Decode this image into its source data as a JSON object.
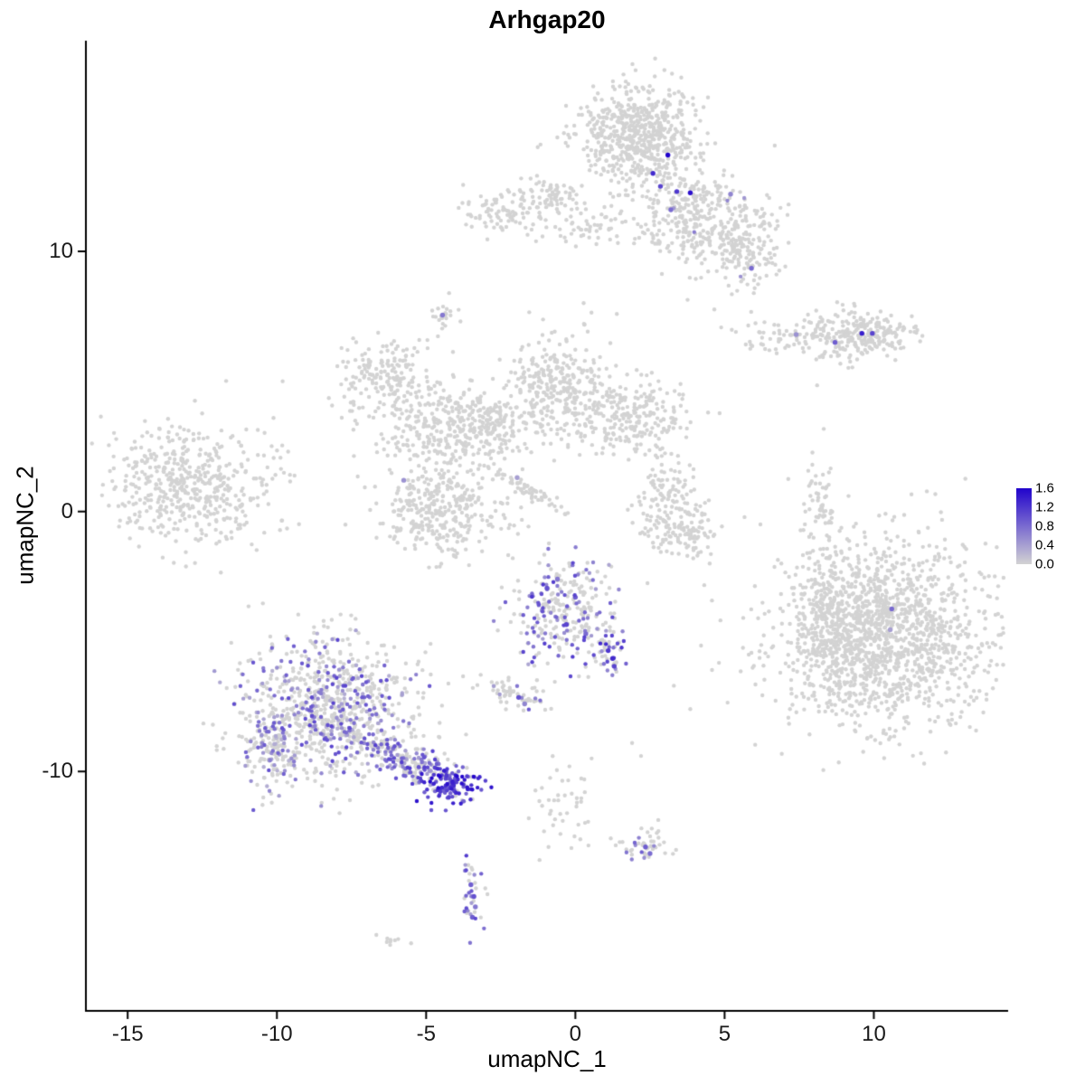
{
  "title": "Arhgap20",
  "chart_data": {
    "type": "scatter",
    "title": "Arhgap20",
    "xlabel": "umapNC_1",
    "ylabel": "umapNC_2",
    "xlim": [
      -16.4,
      14.5
    ],
    "ylim": [
      -19.2,
      18.1
    ],
    "x_ticks": [
      {
        "v": -15,
        "label": "-15"
      },
      {
        "v": -10,
        "label": "-10"
      },
      {
        "v": -5,
        "label": "-5"
      },
      {
        "v": 0,
        "label": "0"
      },
      {
        "v": 5,
        "label": "5"
      },
      {
        "v": 10,
        "label": "10"
      }
    ],
    "y_ticks": [
      {
        "v": 10,
        "label": "10"
      },
      {
        "v": 0,
        "label": "0"
      },
      {
        "v": -10,
        "label": "-10"
      }
    ],
    "grid": false,
    "legend": {
      "position": "right",
      "max": 1.6,
      "ticks": [
        "1.6",
        "1.2",
        "0.8",
        "0.4",
        "0.0"
      ]
    },
    "point_color_low": "#d3d3d3",
    "point_color_high": "#2103cc",
    "clusters": [
      {
        "name": "top-main",
        "cx": 2.1,
        "cy": 14.4,
        "sx": 1.0,
        "sy": 0.95,
        "n": 650
      },
      {
        "name": "top-arm",
        "cx": 4.4,
        "cy": 11.1,
        "sx": 1.2,
        "sy": 0.9,
        "rot": -35,
        "n": 380,
        "f": 0.01,
        "lo": 0.3,
        "hi": 0.7
      },
      {
        "name": "top-tip",
        "cx": 5.75,
        "cy": 9.9,
        "sx": 0.5,
        "sy": 0.6,
        "n": 90
      },
      {
        "name": "topleft-a",
        "cx": -2.4,
        "cy": 11.6,
        "sx": 0.65,
        "sy": 0.45,
        "n": 90
      },
      {
        "name": "topleft-b",
        "cx": -0.76,
        "cy": 12.0,
        "sx": 0.5,
        "sy": 0.4,
        "n": 70
      },
      {
        "name": "topleft-trail",
        "cx": 0.85,
        "cy": 10.9,
        "sx": 1.2,
        "sy": 0.4,
        "n": 70
      },
      {
        "name": "tiny-upper",
        "cx": -4.5,
        "cy": 7.5,
        "sx": 0.28,
        "sy": 0.3,
        "n": 22
      },
      {
        "name": "right-band",
        "cx": 8.6,
        "cy": 6.8,
        "sx": 1.5,
        "sy": 0.33,
        "n": 200
      },
      {
        "name": "right-band-end",
        "cx": 9.9,
        "cy": 7.0,
        "sx": 0.55,
        "sy": 0.45,
        "n": 90
      },
      {
        "name": "right-band-tail",
        "cx": 8.9,
        "cy": 6.05,
        "sx": 0.5,
        "sy": 0.2,
        "n": 25
      },
      {
        "name": "web-a",
        "cx": -6.3,
        "cy": 5.1,
        "sx": 0.85,
        "sy": 0.75,
        "n": 180
      },
      {
        "name": "web-b",
        "cx": -4.6,
        "cy": 3.1,
        "sx": 1.0,
        "sy": 0.9,
        "n": 260
      },
      {
        "name": "web-bridge",
        "cx": -2.9,
        "cy": 3.3,
        "sx": 0.8,
        "sy": 0.6,
        "n": 170
      },
      {
        "name": "web-d",
        "cx": -0.45,
        "cy": 4.8,
        "sx": 0.9,
        "sy": 1.0,
        "n": 320
      },
      {
        "name": "web-e",
        "cx": 1.9,
        "cy": 3.6,
        "sx": 1.0,
        "sy": 0.7,
        "n": 230
      },
      {
        "name": "web-f",
        "cx": -4.4,
        "cy": 0.2,
        "sx": 1.1,
        "sy": 1.0,
        "n": 330
      },
      {
        "name": "web-streak",
        "cx": -1.7,
        "cy": 0.9,
        "sx": 0.8,
        "sy": 0.12,
        "rot": -35,
        "n": 55
      },
      {
        "name": "web-hook",
        "cx": 3.1,
        "cy": 0.2,
        "sx": 0.6,
        "sy": 1.0,
        "n": 160
      },
      {
        "name": "web-hook-b",
        "cx": 3.9,
        "cy": -0.7,
        "sx": 0.5,
        "sy": 0.55,
        "n": 60
      },
      {
        "name": "left-island",
        "cx": -12.9,
        "cy": 1.1,
        "sx": 1.5,
        "sy": 1.15,
        "n": 520
      },
      {
        "name": "right-thin",
        "cx": 8.2,
        "cy": -0.2,
        "sx": 0.28,
        "sy": 1.2,
        "n": 70
      },
      {
        "name": "right-big",
        "cx": 10.4,
        "cy": -4.7,
        "sx": 1.75,
        "sy": 1.7,
        "n": 1500,
        "f": 0.001,
        "lo": 0.3,
        "hi": 0.6
      },
      {
        "name": "right-big-west",
        "cx": 8.35,
        "cy": -4.4,
        "sx": 0.55,
        "sy": 1.5,
        "n": 190
      },
      {
        "name": "mid-island",
        "cx": -0.4,
        "cy": -3.8,
        "sx": 0.85,
        "sy": 1.05,
        "n": 280,
        "f": 0.28,
        "lo": 0.3,
        "hi": 1.2
      },
      {
        "name": "mid-island-arm",
        "cx": 1.1,
        "cy": -5.5,
        "sx": 0.3,
        "sy": 0.5,
        "n": 45,
        "f": 0.5,
        "lo": 0.5,
        "hi": 1.4
      },
      {
        "name": "small-below-mid",
        "cx": -2.1,
        "cy": -7.0,
        "sx": 0.6,
        "sy": 0.3,
        "rot": -30,
        "n": 60,
        "f": 0.12,
        "lo": 0.4,
        "hi": 1.0
      },
      {
        "name": "bottomleft-main",
        "cx": -8.2,
        "cy": -7.6,
        "sx": 1.45,
        "sy": 1.35,
        "n": 850,
        "f": 0.32,
        "lo": 0.2,
        "hi": 1.1
      },
      {
        "name": "bottomleft-edge",
        "cx": -10.15,
        "cy": -9.1,
        "sx": 0.4,
        "sy": 0.85,
        "n": 140,
        "f": 0.28,
        "lo": 0.2,
        "hi": 0.9
      },
      {
        "name": "bottomleft-arm",
        "cx": -5.6,
        "cy": -9.6,
        "sx": 1.0,
        "sy": 0.32,
        "rot": -25,
        "n": 200,
        "f": 0.45,
        "lo": 0.3,
        "hi": 1.2
      },
      {
        "name": "bottomleft-tip",
        "cx": -4.15,
        "cy": -10.5,
        "sx": 0.45,
        "sy": 0.32,
        "n": 120,
        "f": 0.9,
        "lo": 0.8,
        "hi": 1.6
      },
      {
        "name": "below-mid-trail",
        "cx": -0.35,
        "cy": -11.5,
        "sx": 0.5,
        "sy": 0.9,
        "n": 40
      },
      {
        "name": "small-bottomright",
        "cx": 2.3,
        "cy": -12.8,
        "sx": 0.45,
        "sy": 0.35,
        "n": 45,
        "f": 0.12,
        "lo": 0.5,
        "hi": 0.9
      },
      {
        "name": "tiny-bottom",
        "cx": -3.5,
        "cy": -14.8,
        "sx": 0.22,
        "sy": 0.75,
        "n": 34,
        "f": 0.45,
        "lo": 0.4,
        "hi": 1.2
      },
      {
        "name": "bottom-speck",
        "cx": -6.1,
        "cy": -16.6,
        "sx": 0.28,
        "sy": 0.15,
        "n": 9
      }
    ],
    "singles": [
      [
        8.1,
        4.85
      ],
      [
        3.85,
        -7.6
      ],
      [
        5.1,
        -7.35
      ],
      [
        1.9,
        -8.9
      ],
      [
        2.2,
        -9.4
      ],
      [
        0.3,
        -10.3
      ],
      [
        -0.2,
        -9.8
      ],
      [
        4.5,
        -2.0
      ],
      [
        2.6,
        -1.2
      ],
      [
        6.2,
        -0.5
      ],
      [
        -8.5,
        -11.2
      ],
      [
        -7.9,
        -11.6
      ],
      [
        -0.9,
        -12.9
      ],
      [
        -1.2,
        -13.4
      ],
      [
        12.9,
        -7.9
      ],
      [
        7.6,
        -7.0
      ],
      [
        3.3,
        -6.7
      ],
      [
        6.9,
        -2.0
      ]
    ],
    "highlights": [
      [
        2.6,
        13.0,
        1.3
      ],
      [
        3.1,
        13.7,
        1.6
      ],
      [
        2.85,
        12.5,
        1.1
      ],
      [
        3.4,
        12.3,
        1.2
      ],
      [
        3.85,
        12.25,
        1.5
      ],
      [
        3.2,
        11.6,
        0.8
      ],
      [
        5.2,
        12.2,
        0.6
      ],
      [
        5.9,
        9.35,
        0.8
      ],
      [
        -4.45,
        7.55,
        0.7
      ],
      [
        7.4,
        6.8,
        0.5
      ],
      [
        8.7,
        6.5,
        0.9
      ],
      [
        9.6,
        6.85,
        1.4
      ],
      [
        9.95,
        6.85,
        1.1
      ],
      [
        -5.75,
        1.2,
        0.5
      ],
      [
        -1.95,
        1.3,
        0.4
      ],
      [
        10.6,
        -3.75,
        0.8
      ],
      [
        10.55,
        -4.55,
        0.4
      ],
      [
        -0.95,
        -2.95,
        1.0
      ],
      [
        -0.6,
        -2.6,
        0.7
      ],
      [
        0.0,
        -3.3,
        0.9
      ],
      [
        -0.3,
        -4.35,
        1.1
      ],
      [
        0.35,
        -4.7,
        0.8
      ],
      [
        1.1,
        -5.35,
        1.2
      ],
      [
        1.25,
        -5.65,
        1.3
      ],
      [
        1.3,
        -5.95,
        1.1
      ],
      [
        -1.9,
        -7.15,
        1.0
      ],
      [
        -1.7,
        -7.4,
        0.6
      ],
      [
        2.35,
        -12.9,
        0.9
      ],
      [
        2.5,
        -13.15,
        0.8
      ],
      [
        -3.5,
        -14.35,
        0.9
      ],
      [
        -3.4,
        -14.8,
        1.0
      ],
      [
        -3.35,
        -15.2,
        0.7
      ],
      [
        -3.45,
        -15.6,
        0.9
      ]
    ]
  }
}
